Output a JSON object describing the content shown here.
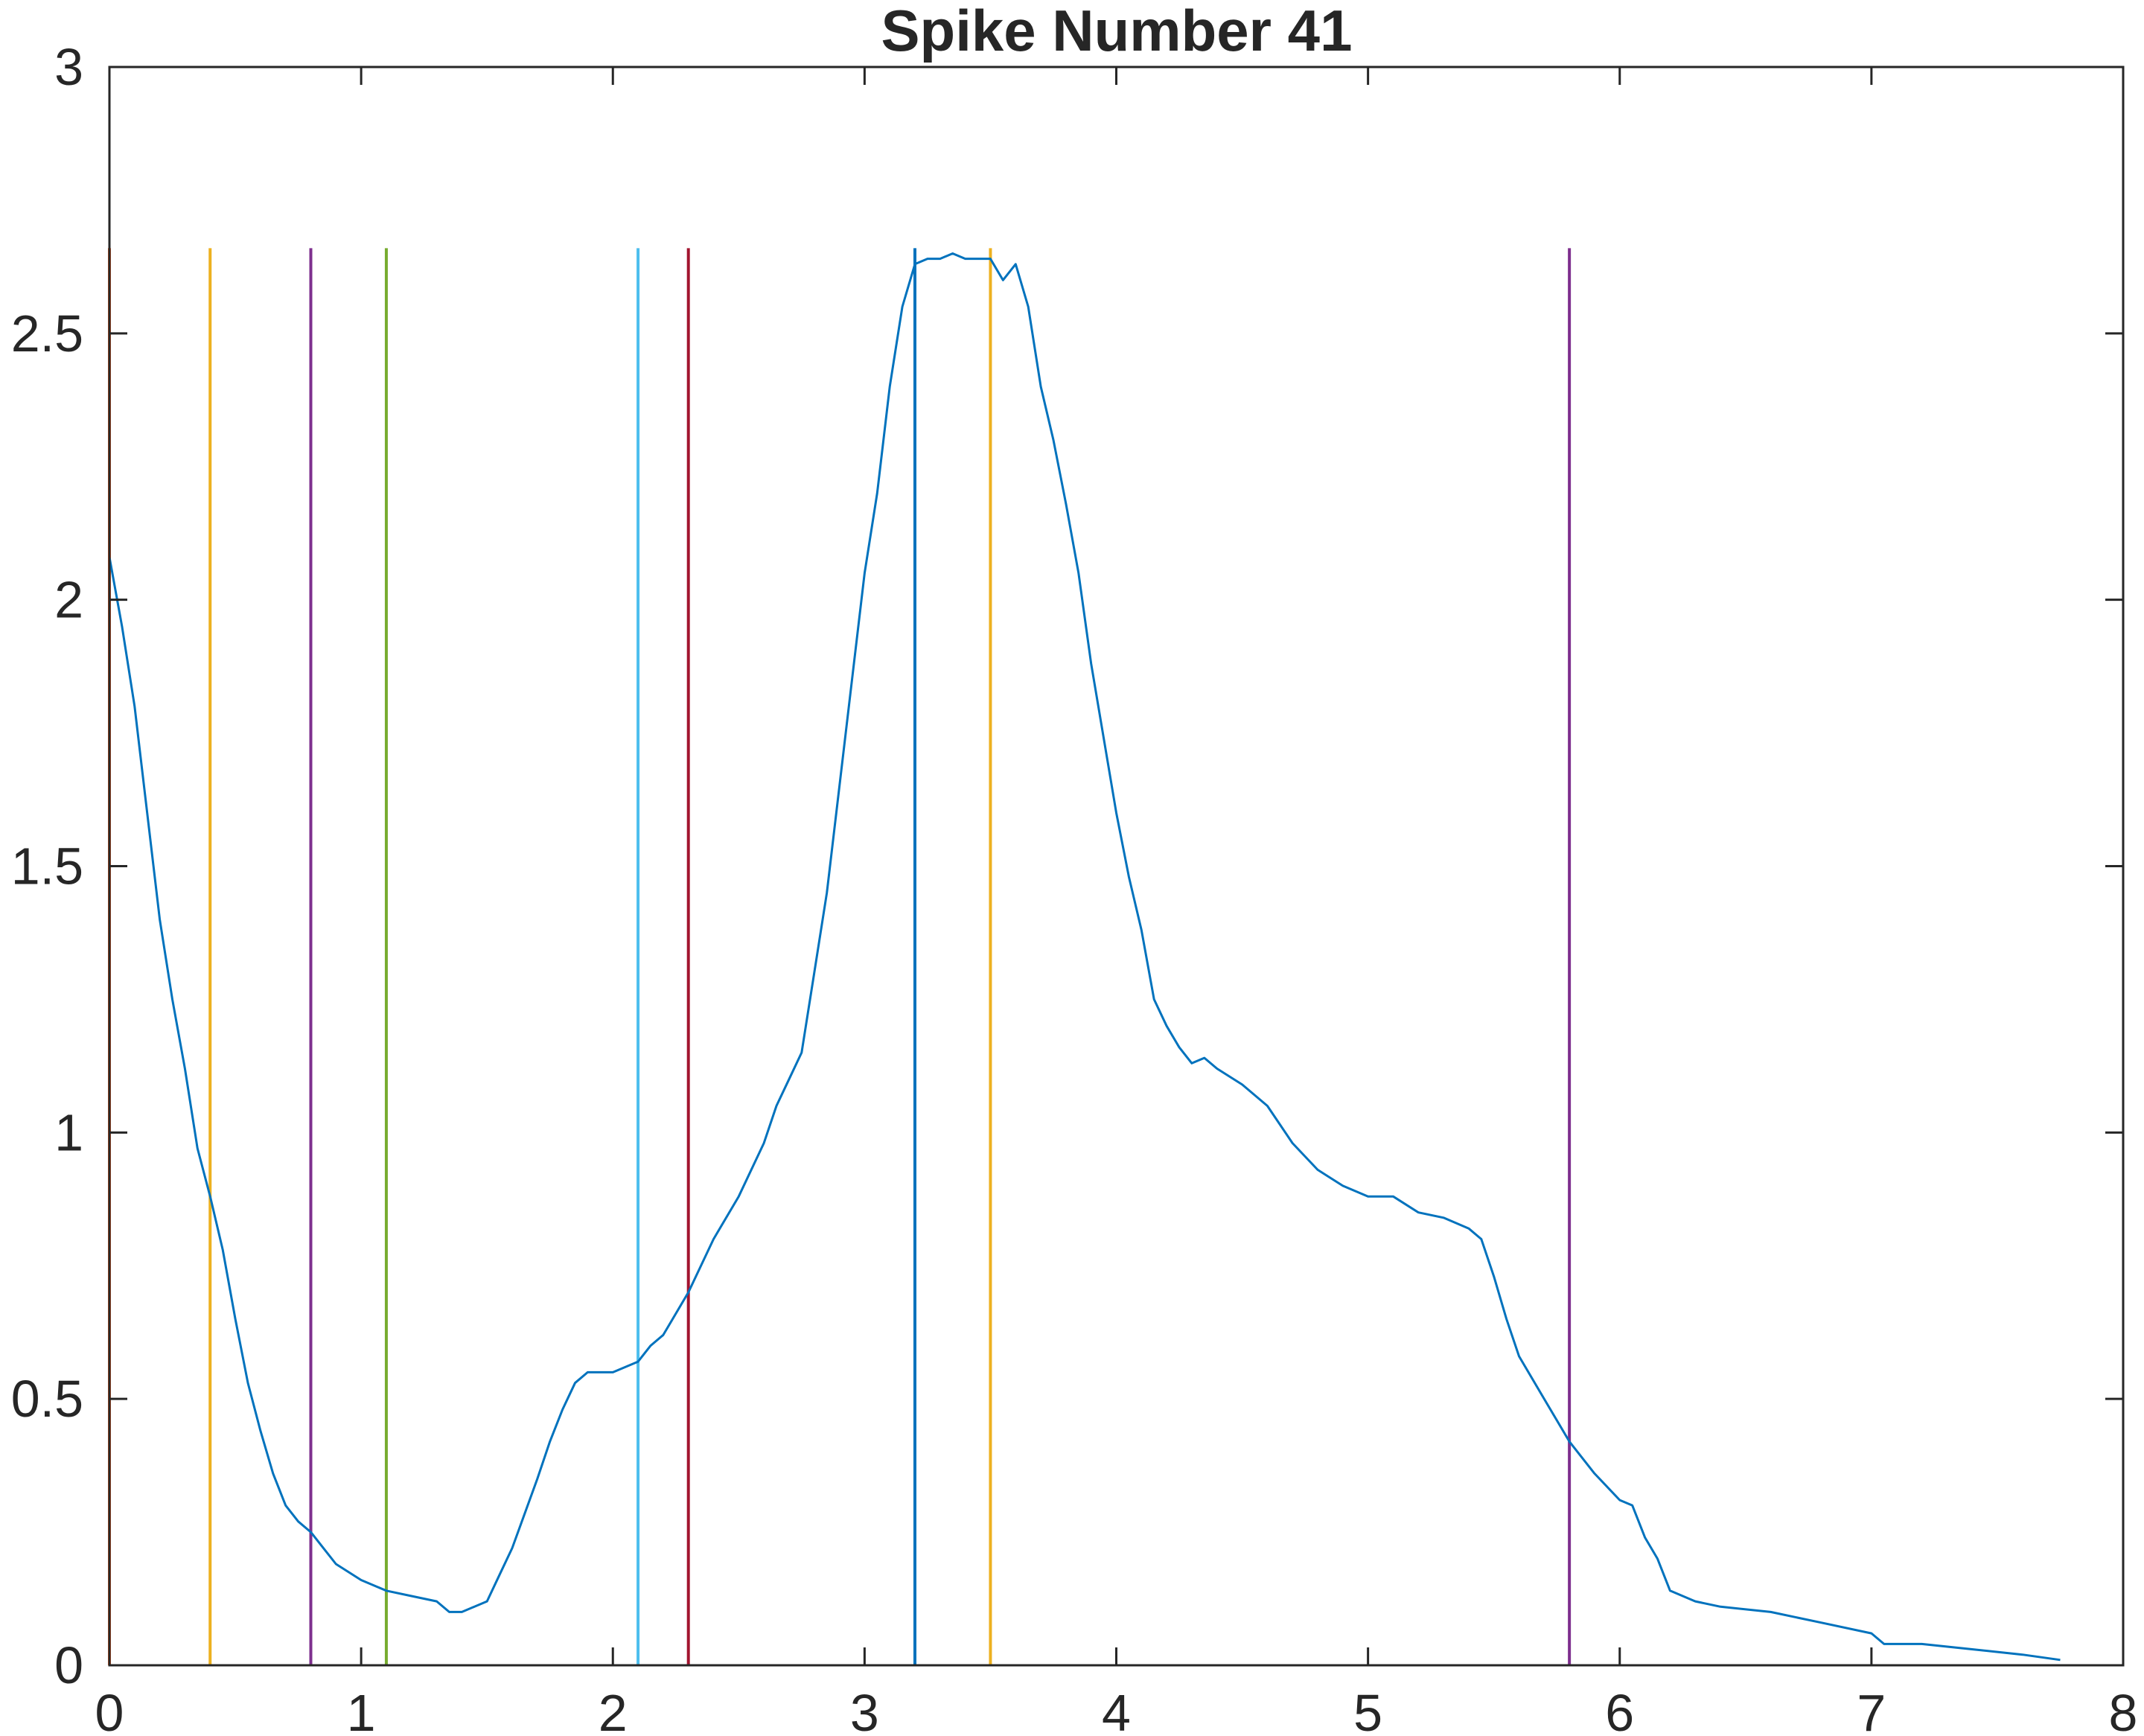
{
  "chart_data": {
    "type": "line",
    "title": "Spike Number 41",
    "xlabel": "",
    "ylabel": "",
    "xlim": [
      0,
      8
    ],
    "ylim": [
      0,
      3
    ],
    "xticks": [
      0,
      1,
      2,
      3,
      4,
      5,
      6,
      7,
      8
    ],
    "yticks": [
      0,
      0.5,
      1,
      1.5,
      2,
      2.5,
      3
    ],
    "xtick_labels": [
      "0",
      "1",
      "2",
      "3",
      "4",
      "5",
      "6",
      "7",
      "8"
    ],
    "ytick_labels": [
      "0",
      "0.5",
      "1",
      "1.5",
      "2",
      "2.5",
      "3"
    ],
    "grid": false,
    "box": true,
    "series": [
      {
        "color": "#0072bd",
        "x": [
          0.0,
          0.05,
          0.1,
          0.15,
          0.2,
          0.25,
          0.3,
          0.35,
          0.4,
          0.45,
          0.5,
          0.55,
          0.6,
          0.65,
          0.7,
          0.75,
          0.8,
          0.85,
          0.9,
          1.0,
          1.1,
          1.2,
          1.3,
          1.35,
          1.4,
          1.5,
          1.55,
          1.6,
          1.7,
          1.75,
          1.8,
          1.85,
          1.9,
          2.0,
          2.1,
          2.15,
          2.2,
          2.3,
          2.4,
          2.5,
          2.6,
          2.65,
          2.7,
          2.75,
          2.8,
          2.85,
          2.9,
          2.95,
          3.0,
          3.05,
          3.1,
          3.15,
          3.2,
          3.25,
          3.3,
          3.35,
          3.4,
          3.45,
          3.5,
          3.55,
          3.6,
          3.65,
          3.7,
          3.75,
          3.8,
          3.85,
          3.9,
          4.0,
          4.05,
          4.1,
          4.15,
          4.2,
          4.25,
          4.3,
          4.35,
          4.4,
          4.5,
          4.6,
          4.7,
          4.8,
          4.9,
          5.0,
          5.1,
          5.2,
          5.3,
          5.4,
          5.45,
          5.5,
          5.55,
          5.6,
          5.7,
          5.8,
          5.85,
          5.9,
          6.0,
          6.05,
          6.1,
          6.15,
          6.2,
          6.3,
          6.4,
          6.6,
          6.8,
          7.0,
          7.05,
          7.2,
          7.4,
          7.6,
          7.75
        ],
        "y": [
          2.08,
          1.95,
          1.8,
          1.6,
          1.4,
          1.25,
          1.12,
          0.97,
          0.88,
          0.78,
          0.65,
          0.53,
          0.44,
          0.36,
          0.3,
          0.27,
          0.25,
          0.22,
          0.19,
          0.16,
          0.14,
          0.13,
          0.12,
          0.1,
          0.1,
          0.12,
          0.17,
          0.22,
          0.35,
          0.42,
          0.48,
          0.53,
          0.55,
          0.55,
          0.57,
          0.6,
          0.62,
          0.7,
          0.8,
          0.88,
          0.98,
          1.05,
          1.1,
          1.15,
          1.3,
          1.45,
          1.65,
          1.85,
          2.05,
          2.2,
          2.4,
          2.55,
          2.63,
          2.64,
          2.64,
          2.65,
          2.64,
          2.64,
          2.64,
          2.6,
          2.63,
          2.55,
          2.4,
          2.3,
          2.18,
          2.05,
          1.88,
          1.6,
          1.48,
          1.38,
          1.25,
          1.2,
          1.16,
          1.13,
          1.14,
          1.12,
          1.09,
          1.05,
          0.98,
          0.93,
          0.9,
          0.88,
          0.88,
          0.85,
          0.84,
          0.82,
          0.8,
          0.73,
          0.65,
          0.58,
          0.5,
          0.42,
          0.39,
          0.36,
          0.31,
          0.3,
          0.24,
          0.2,
          0.14,
          0.12,
          0.11,
          0.1,
          0.08,
          0.06,
          0.04,
          0.04,
          0.03,
          0.02,
          0.01
        ]
      }
    ],
    "vertical_lines": [
      {
        "x": 0.0,
        "color": "#d95319",
        "ymin": 0,
        "ymax": 2.66
      },
      {
        "x": 0.4,
        "color": "#edb120",
        "ymin": 0,
        "ymax": 2.66
      },
      {
        "x": 0.8,
        "color": "#7e2f8e",
        "ymin": 0,
        "ymax": 2.66
      },
      {
        "x": 1.1,
        "color": "#77ac30",
        "ymin": 0,
        "ymax": 2.66
      },
      {
        "x": 2.1,
        "color": "#4dbeee",
        "ymin": 0,
        "ymax": 2.66
      },
      {
        "x": 2.3,
        "color": "#a2142f",
        "ymin": 0,
        "ymax": 2.66
      },
      {
        "x": 3.2,
        "color": "#0072bd",
        "ymin": 0,
        "ymax": 2.66
      },
      {
        "x": 3.5,
        "color": "#edb120",
        "ymin": 0,
        "ymax": 2.66
      },
      {
        "x": 5.8,
        "color": "#7e2f8e",
        "ymin": 0,
        "ymax": 2.66
      }
    ]
  }
}
